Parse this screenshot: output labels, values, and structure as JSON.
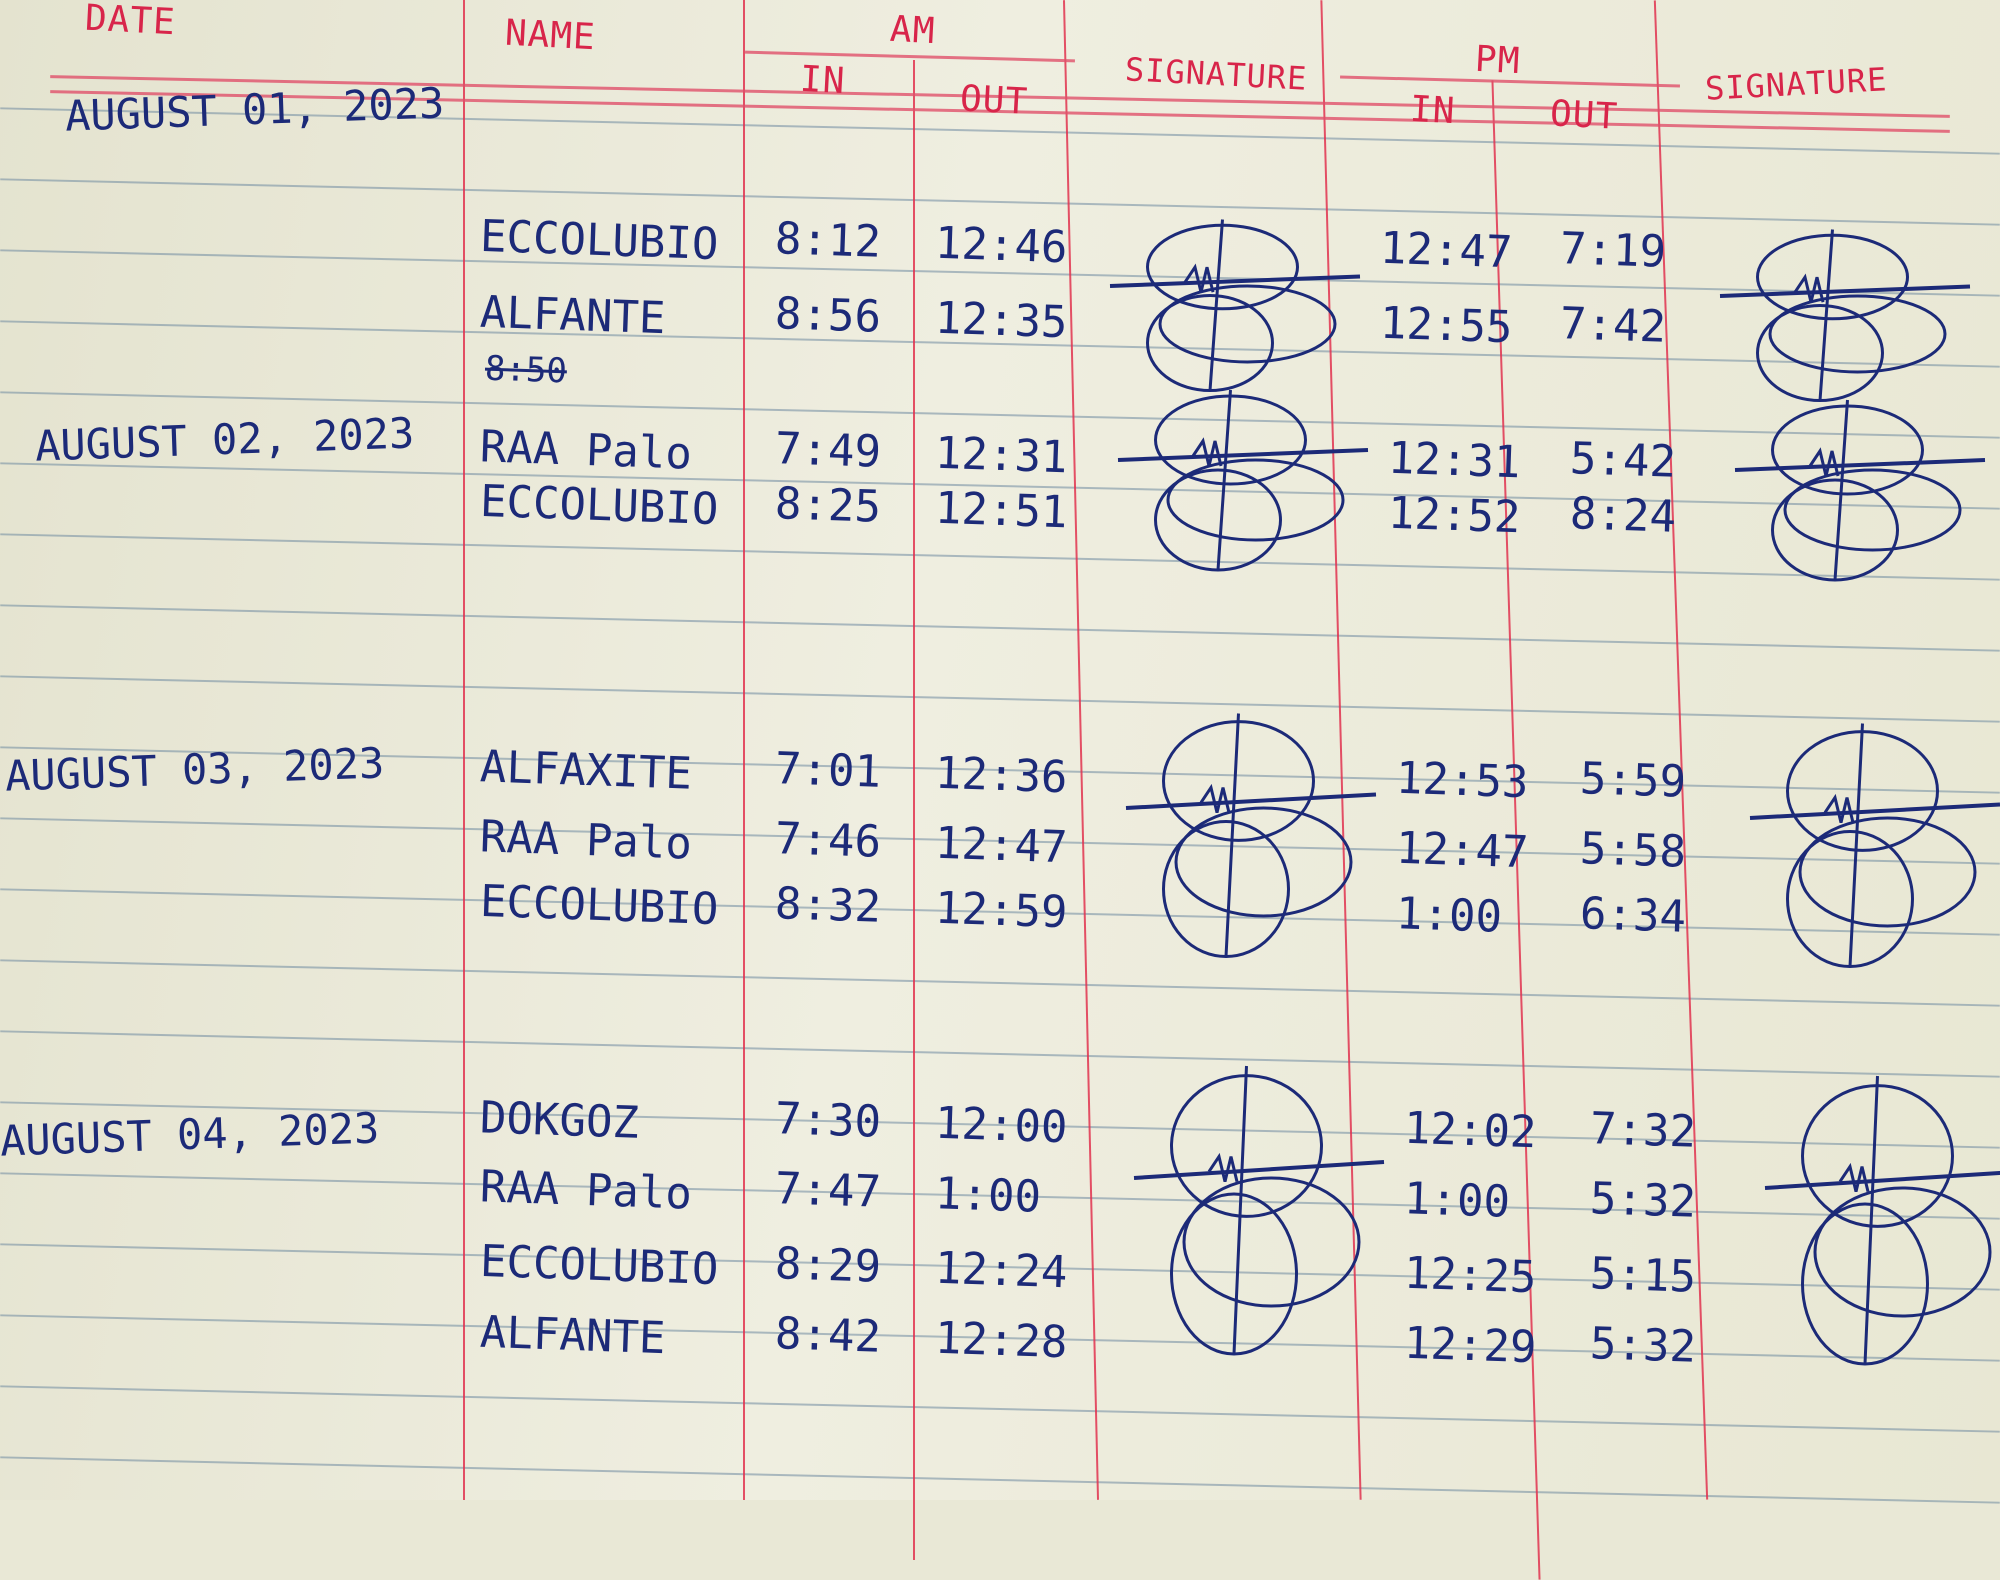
{
  "headers": {
    "date": "DATE",
    "name": "NAME",
    "am": "AM",
    "am_in": "IN",
    "am_out": "OUT",
    "signature_am": "SIGNATURE",
    "pm": "PM",
    "pm_in": "IN",
    "pm_out": "OUT",
    "signature_pm": "SIGNATURE"
  },
  "days": [
    {
      "date": "AUGUST 01, 2023",
      "entries": [
        {
          "name": "ECCOLUBIO",
          "am_in": "8:12",
          "am_out": "12:46",
          "pm_in": "12:47",
          "pm_out": "7:19"
        },
        {
          "name": "ALFANTE",
          "am_in": "8:56",
          "am_out": "12:35",
          "pm_in": "12:55",
          "pm_out": "7:42"
        }
      ],
      "struck": "8:50"
    },
    {
      "date": "AUGUST 02, 2023",
      "entries": [
        {
          "name": "RAA Palo",
          "am_in": "7:49",
          "am_out": "12:31",
          "pm_in": "12:31",
          "pm_out": "5:42"
        },
        {
          "name": "ECCOLUBIO",
          "am_in": "8:25",
          "am_out": "12:51",
          "pm_in": "12:52",
          "pm_out": "8:24"
        }
      ]
    },
    {
      "date": "AUGUST 03, 2023",
      "entries": [
        {
          "name": "ALFAXITE",
          "am_in": "7:01",
          "am_out": "12:36",
          "pm_in": "12:53",
          "pm_out": "5:59"
        },
        {
          "name": "RAA Palo",
          "am_in": "7:46",
          "am_out": "12:47",
          "pm_in": "12:47",
          "pm_out": "5:58"
        },
        {
          "name": "ECCOLUBIO",
          "am_in": "8:32",
          "am_out": "12:59",
          "pm_in": "1:00",
          "pm_out": "6:34"
        }
      ]
    },
    {
      "date": "AUGUST 04, 2023",
      "entries": [
        {
          "name": "DOKGOZ",
          "am_in": "7:30",
          "am_out": "12:00",
          "pm_in": "12:02",
          "pm_out": "7:32"
        },
        {
          "name": "RAA Palo",
          "am_in": "7:47",
          "am_out": "1:00",
          "pm_in": "1:00",
          "pm_out": "5:32"
        },
        {
          "name": "ECCOLUBIO",
          "am_in": "8:29",
          "am_out": "12:24",
          "pm_in": "12:25",
          "pm_out": "5:15"
        },
        {
          "name": "ALFANTE",
          "am_in": "8:42",
          "am_out": "12:28",
          "pm_in": "12:29",
          "pm_out": "5:32"
        }
      ]
    }
  ],
  "colors": {
    "paper": "#e9e8d6",
    "ink": "#1c2a78",
    "red_ink": "#d8254a",
    "rule": "#6f8aa0"
  }
}
